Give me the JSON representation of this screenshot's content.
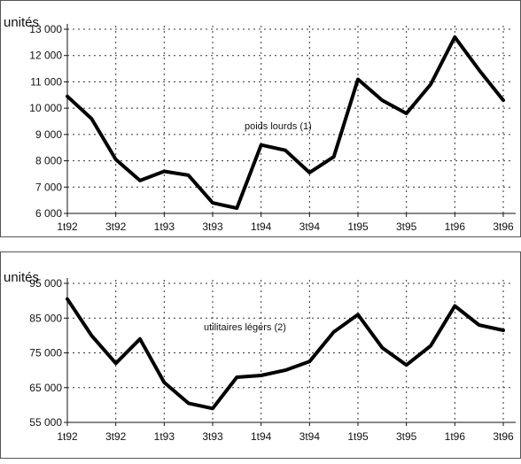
{
  "chart_data": [
    {
      "type": "line",
      "unit_label": "unités",
      "x": [
        "1t92",
        "2t92",
        "3t92",
        "4t92",
        "1t93",
        "2t93",
        "3t93",
        "4t93",
        "1t94",
        "2t94",
        "3t94",
        "4t94",
        "1t95",
        "2t95",
        "3t95",
        "4t95",
        "1t96",
        "2t96",
        "3t96"
      ],
      "x_tick_labels": [
        "1t92",
        "3t92",
        "1t93",
        "3t93",
        "1t94",
        "3t94",
        "1t95",
        "3t95",
        "1t96",
        "3t96"
      ],
      "y_tick_labels": [
        "6 000",
        "7 000",
        "8 000",
        "9 000",
        "10 000",
        "11 000",
        "12 000",
        "13 000"
      ],
      "ylim": [
        6000,
        13000
      ],
      "grid": true,
      "series": [
        {
          "name": "poids lourds (1)",
          "values": [
            10450,
            9600,
            8050,
            7250,
            7600,
            7450,
            6400,
            6200,
            8600,
            8400,
            7550,
            8150,
            11100,
            10300,
            9800,
            10900,
            12700,
            11450,
            10300
          ]
        }
      ]
    },
    {
      "type": "line",
      "unit_label": "unités",
      "x": [
        "1t92",
        "2t92",
        "3t92",
        "4t92",
        "1t93",
        "2t93",
        "3t93",
        "4t93",
        "1t94",
        "2t94",
        "3t94",
        "4t94",
        "1t95",
        "2t95",
        "3t95",
        "4t95",
        "1t96",
        "2t96",
        "3t96"
      ],
      "x_tick_labels": [
        "1t92",
        "3t92",
        "1t93",
        "3t93",
        "1t94",
        "3t94",
        "1t95",
        "3t95",
        "1t96",
        "3t96"
      ],
      "y_tick_labels": [
        "55 000",
        "65 000",
        "75 000",
        "85 000",
        "95 000"
      ],
      "ylim": [
        55000,
        95000
      ],
      "grid": true,
      "series": [
        {
          "name": "utilitaires légers (2)",
          "values": [
            90500,
            80000,
            72000,
            79000,
            66500,
            60500,
            59000,
            68000,
            68500,
            70000,
            72500,
            81000,
            86000,
            76500,
            71500,
            77000,
            88500,
            83000,
            81500
          ]
        }
      ]
    }
  ]
}
